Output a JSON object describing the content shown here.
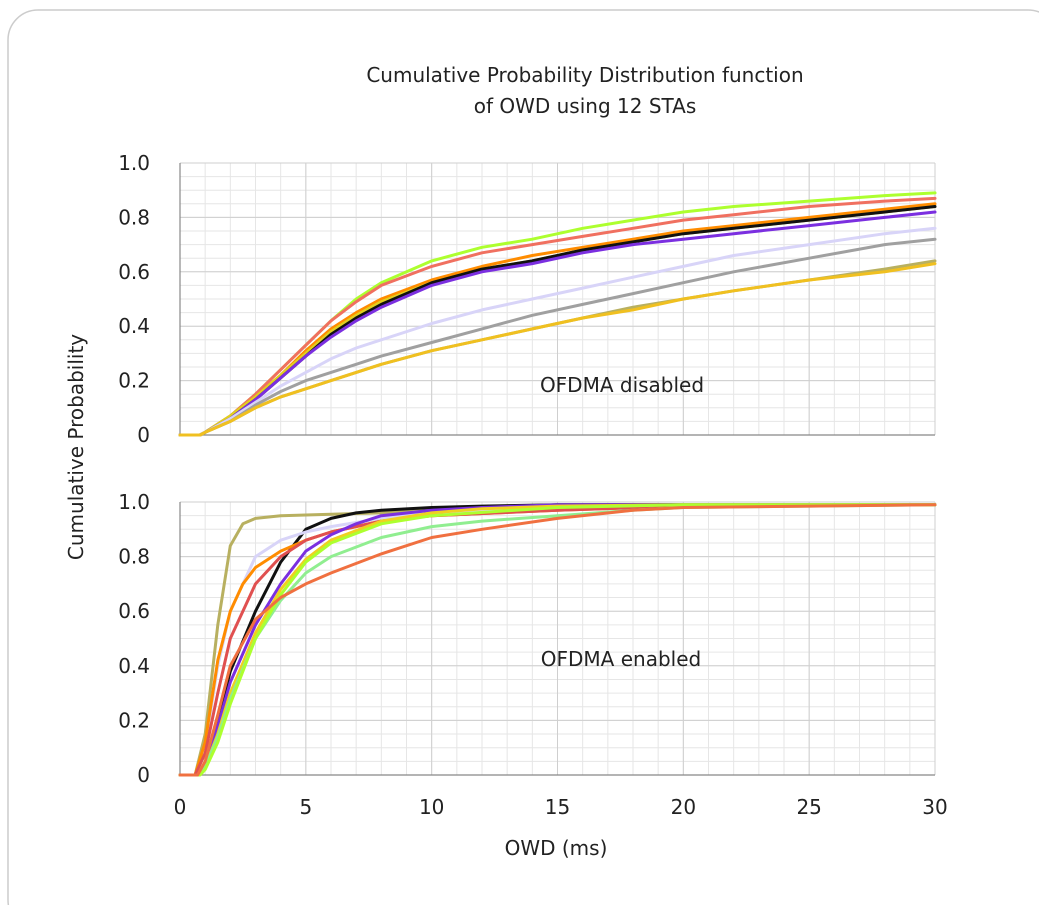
{
  "figure": {
    "title_line1": "Cumulative Probability Distribution function",
    "title_line2": "of OWD using 12 STAs",
    "ylabel": "Cumulative Probability",
    "xlabel": "OWD (ms)"
  },
  "chart_data": [
    {
      "type": "line",
      "panel": "top",
      "annotation": "OFDMA disabled",
      "xlabel": "OWD (ms)",
      "ylabel": "Cumulative Probability",
      "xlim": [
        0,
        30
      ],
      "ylim": [
        0,
        1
      ],
      "xticks": [
        "0",
        "5",
        "10",
        "15",
        "20",
        "25",
        "30"
      ],
      "yticks": [
        "0",
        "0.2",
        "0.4",
        "0.6",
        "0.8",
        "1.0"
      ],
      "grid": true,
      "series": [
        {
          "color": "#ADFF2F",
          "x": [
            0,
            0.8,
            1,
            2,
            3,
            4,
            5,
            6,
            7,
            8,
            10,
            12,
            14,
            16,
            18,
            20,
            22,
            25,
            28,
            30
          ],
          "y": [
            0,
            0,
            0.01,
            0.07,
            0.15,
            0.24,
            0.33,
            0.42,
            0.5,
            0.56,
            0.64,
            0.69,
            0.72,
            0.76,
            0.79,
            0.82,
            0.84,
            0.86,
            0.88,
            0.89
          ]
        },
        {
          "color": "#F07060",
          "x": [
            0,
            0.8,
            1,
            2,
            3,
            4,
            5,
            6,
            7,
            8,
            10,
            12,
            14,
            16,
            18,
            20,
            22,
            25,
            28,
            30
          ],
          "y": [
            0,
            0,
            0.01,
            0.07,
            0.15,
            0.24,
            0.33,
            0.42,
            0.49,
            0.55,
            0.62,
            0.67,
            0.7,
            0.73,
            0.76,
            0.79,
            0.81,
            0.84,
            0.86,
            0.87
          ]
        },
        {
          "color": "#FF8C00",
          "x": [
            0,
            0.8,
            1,
            2,
            3,
            4,
            5,
            6,
            7,
            8,
            10,
            12,
            14,
            16,
            18,
            20,
            22,
            25,
            28,
            30
          ],
          "y": [
            0,
            0,
            0.01,
            0.07,
            0.14,
            0.22,
            0.31,
            0.39,
            0.45,
            0.5,
            0.57,
            0.62,
            0.66,
            0.69,
            0.72,
            0.75,
            0.77,
            0.8,
            0.83,
            0.85
          ]
        },
        {
          "color": "#E0D020",
          "x": [
            0,
            0.8,
            1,
            2,
            3,
            4,
            5,
            6,
            7,
            8,
            10,
            12,
            14,
            16,
            18,
            20,
            22,
            25,
            28,
            30
          ],
          "y": [
            0,
            0,
            0.01,
            0.07,
            0.14,
            0.22,
            0.3,
            0.38,
            0.44,
            0.49,
            0.56,
            0.61,
            0.64,
            0.68,
            0.71,
            0.74,
            0.76,
            0.79,
            0.82,
            0.84
          ]
        },
        {
          "color": "#111111",
          "x": [
            0,
            0.8,
            1,
            2,
            3,
            4,
            5,
            6,
            7,
            8,
            10,
            12,
            14,
            16,
            18,
            20,
            22,
            25,
            28,
            30
          ],
          "y": [
            0,
            0,
            0.01,
            0.06,
            0.13,
            0.21,
            0.29,
            0.37,
            0.43,
            0.48,
            0.56,
            0.61,
            0.64,
            0.68,
            0.71,
            0.74,
            0.76,
            0.79,
            0.82,
            0.84
          ]
        },
        {
          "color": "#7B2FE0",
          "x": [
            0,
            0.8,
            1,
            2,
            3,
            4,
            5,
            6,
            7,
            8,
            10,
            12,
            14,
            16,
            18,
            20,
            22,
            25,
            28,
            30
          ],
          "y": [
            0,
            0,
            0.01,
            0.06,
            0.13,
            0.21,
            0.29,
            0.36,
            0.42,
            0.47,
            0.55,
            0.6,
            0.63,
            0.67,
            0.7,
            0.72,
            0.74,
            0.77,
            0.8,
            0.82
          ]
        },
        {
          "color": "#D8D4F8",
          "x": [
            0,
            0.8,
            1,
            2,
            3,
            4,
            5,
            6,
            7,
            8,
            10,
            12,
            14,
            16,
            18,
            20,
            22,
            25,
            28,
            30
          ],
          "y": [
            0,
            0,
            0.01,
            0.06,
            0.12,
            0.18,
            0.23,
            0.28,
            0.32,
            0.35,
            0.41,
            0.46,
            0.5,
            0.54,
            0.58,
            0.62,
            0.66,
            0.7,
            0.74,
            0.76
          ]
        },
        {
          "color": "#A0A0A0",
          "x": [
            0,
            0.8,
            1,
            2,
            3,
            4,
            5,
            6,
            7,
            8,
            10,
            12,
            14,
            16,
            18,
            20,
            22,
            25,
            28,
            30
          ],
          "y": [
            0,
            0,
            0.01,
            0.05,
            0.11,
            0.16,
            0.2,
            0.23,
            0.26,
            0.29,
            0.34,
            0.39,
            0.44,
            0.48,
            0.52,
            0.56,
            0.6,
            0.65,
            0.7,
            0.72
          ]
        },
        {
          "color": "#B8B060",
          "x": [
            0,
            0.8,
            1,
            2,
            3,
            4,
            5,
            6,
            7,
            8,
            10,
            12,
            14,
            16,
            18,
            20,
            22,
            25,
            28,
            30
          ],
          "y": [
            0,
            0,
            0.01,
            0.05,
            0.1,
            0.14,
            0.17,
            0.2,
            0.23,
            0.26,
            0.31,
            0.35,
            0.39,
            0.43,
            0.47,
            0.5,
            0.53,
            0.57,
            0.61,
            0.64
          ]
        },
        {
          "color": "#F0C020",
          "x": [
            0,
            0.8,
            1,
            2,
            3,
            4,
            5,
            6,
            7,
            8,
            10,
            12,
            14,
            16,
            18,
            20,
            22,
            25,
            28,
            30
          ],
          "y": [
            0,
            0,
            0.01,
            0.05,
            0.1,
            0.14,
            0.17,
            0.2,
            0.23,
            0.26,
            0.31,
            0.35,
            0.39,
            0.43,
            0.46,
            0.5,
            0.53,
            0.57,
            0.6,
            0.63
          ]
        }
      ]
    },
    {
      "type": "line",
      "panel": "bottom",
      "annotation": "OFDMA enabled",
      "xlabel": "OWD (ms)",
      "ylabel": "Cumulative Probability",
      "xlim": [
        0,
        30
      ],
      "ylim": [
        0,
        1
      ],
      "xticks": [
        "0",
        "5",
        "10",
        "15",
        "20",
        "25",
        "30"
      ],
      "yticks": [
        "0",
        "0.2",
        "0.4",
        "0.6",
        "0.8",
        "1.0"
      ],
      "grid": true,
      "series": [
        {
          "color": "#B8B060",
          "x": [
            0,
            0.6,
            1,
            1.5,
            2,
            2.5,
            3,
            4,
            6,
            8,
            10,
            15,
            20,
            30
          ],
          "y": [
            0,
            0,
            0.15,
            0.55,
            0.84,
            0.92,
            0.94,
            0.95,
            0.955,
            0.96,
            0.97,
            0.99,
            0.99,
            0.99
          ]
        },
        {
          "color": "#111111",
          "x": [
            0,
            0.7,
            1,
            1.5,
            2,
            3,
            4,
            5,
            6,
            7,
            8,
            10,
            12,
            15,
            20,
            30
          ],
          "y": [
            0,
            0,
            0.03,
            0.2,
            0.38,
            0.6,
            0.78,
            0.9,
            0.94,
            0.96,
            0.97,
            0.98,
            0.985,
            0.99,
            0.99,
            0.99
          ]
        },
        {
          "color": "#D8D4F8",
          "x": [
            0,
            0.6,
            1,
            1.5,
            2,
            3,
            4,
            5,
            6,
            8,
            10,
            15,
            20,
            30
          ],
          "y": [
            0,
            0,
            0.1,
            0.4,
            0.6,
            0.8,
            0.86,
            0.89,
            0.91,
            0.94,
            0.96,
            0.98,
            0.99,
            0.99
          ]
        },
        {
          "color": "#FF8C00",
          "x": [
            0,
            0.6,
            1,
            1.5,
            2,
            2.5,
            3,
            4,
            5,
            6,
            8,
            10,
            15,
            20,
            30
          ],
          "y": [
            0,
            0,
            0.12,
            0.42,
            0.6,
            0.7,
            0.76,
            0.82,
            0.86,
            0.89,
            0.93,
            0.95,
            0.97,
            0.985,
            0.99
          ]
        },
        {
          "color": "#E05050",
          "x": [
            0,
            0.6,
            1,
            1.5,
            2,
            3,
            4,
            5,
            6,
            8,
            10,
            15,
            20,
            30
          ],
          "y": [
            0,
            0,
            0.08,
            0.3,
            0.5,
            0.7,
            0.8,
            0.86,
            0.89,
            0.93,
            0.95,
            0.97,
            0.985,
            0.99
          ]
        },
        {
          "color": "#7B2FE0",
          "x": [
            0,
            0.7,
            1,
            1.5,
            2,
            3,
            4,
            5,
            6,
            7,
            8,
            10,
            12,
            15,
            20,
            30
          ],
          "y": [
            0,
            0,
            0.04,
            0.18,
            0.34,
            0.55,
            0.7,
            0.82,
            0.88,
            0.92,
            0.95,
            0.97,
            0.98,
            0.99,
            0.99,
            0.99
          ]
        },
        {
          "color": "#F0D020",
          "x": [
            0,
            0.7,
            1,
            1.5,
            2,
            3,
            4,
            5,
            6,
            8,
            10,
            12,
            15,
            20,
            30
          ],
          "y": [
            0,
            0,
            0.03,
            0.15,
            0.3,
            0.52,
            0.68,
            0.79,
            0.86,
            0.93,
            0.96,
            0.975,
            0.985,
            0.99,
            0.99
          ]
        },
        {
          "color": "#90EE90",
          "x": [
            0,
            0.7,
            1,
            1.5,
            2,
            3,
            4,
            5,
            6,
            8,
            10,
            12,
            15,
            18,
            20,
            30
          ],
          "y": [
            0,
            0,
            0.03,
            0.14,
            0.28,
            0.5,
            0.64,
            0.74,
            0.8,
            0.87,
            0.91,
            0.93,
            0.95,
            0.97,
            0.98,
            0.99
          ]
        },
        {
          "color": "#ADFF2F",
          "x": [
            0,
            0.8,
            1,
            1.5,
            2,
            3,
            4,
            5,
            6,
            8,
            10,
            15,
            20,
            30
          ],
          "y": [
            0,
            0,
            0.02,
            0.12,
            0.26,
            0.5,
            0.66,
            0.78,
            0.85,
            0.92,
            0.95,
            0.98,
            0.99,
            0.99
          ]
        },
        {
          "color": "#F07040",
          "x": [
            0,
            0.7,
            1,
            1.5,
            2,
            3,
            4,
            5,
            6,
            8,
            10,
            12,
            15,
            18,
            20,
            30
          ],
          "y": [
            0,
            0,
            0.05,
            0.22,
            0.4,
            0.57,
            0.65,
            0.7,
            0.74,
            0.81,
            0.87,
            0.9,
            0.94,
            0.97,
            0.98,
            0.99
          ]
        }
      ]
    }
  ]
}
